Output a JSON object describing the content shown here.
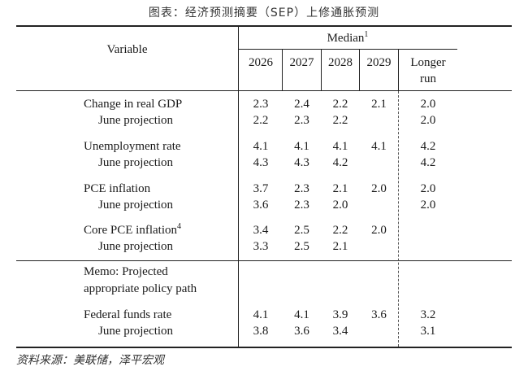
{
  "title": "图表：经济预测摘要（SEP）上修通胀预测",
  "header": {
    "variable": "Variable",
    "median": "Median",
    "median_sup": "1",
    "years": [
      "2026",
      "2027",
      "2028",
      "2029"
    ],
    "longer_1": "Longer",
    "longer_2": "run"
  },
  "rows": [
    {
      "label": "Change in real GDP",
      "sup": "",
      "v": [
        "2.3",
        "2.4",
        "2.2",
        "2.1"
      ],
      "lr": "2.0"
    },
    {
      "label": "June projection",
      "sup": "",
      "v": [
        "2.2",
        "2.3",
        "2.2",
        ""
      ],
      "lr": "2.0"
    },
    {
      "label": "Unemployment rate",
      "sup": "",
      "v": [
        "4.1",
        "4.1",
        "4.1",
        "4.1"
      ],
      "lr": "4.2"
    },
    {
      "label": "June projection",
      "sup": "",
      "v": [
        "4.3",
        "4.3",
        "4.2",
        ""
      ],
      "lr": "4.2"
    },
    {
      "label": "PCE inflation",
      "sup": "",
      "v": [
        "3.7",
        "2.3",
        "2.1",
        "2.0"
      ],
      "lr": "2.0"
    },
    {
      "label": "June projection",
      "sup": "",
      "v": [
        "3.6",
        "2.3",
        "2.0",
        ""
      ],
      "lr": "2.0"
    },
    {
      "label": "Core PCE inflation",
      "sup": "4",
      "v": [
        "3.4",
        "2.5",
        "2.2",
        "2.0"
      ],
      "lr": ""
    },
    {
      "label": "June projection",
      "sup": "",
      "v": [
        "3.3",
        "2.5",
        "2.1",
        ""
      ],
      "lr": ""
    },
    {
      "label": "Memo: Projected",
      "sup": "",
      "v": [
        "",
        "",
        "",
        ""
      ],
      "lr": ""
    },
    {
      "label": "appropriate policy path",
      "sup": "",
      "v": [
        "",
        "",
        "",
        ""
      ],
      "lr": ""
    },
    {
      "label": "Federal funds rate",
      "sup": "",
      "v": [
        "4.1",
        "4.1",
        "3.9",
        "3.6"
      ],
      "lr": "3.2"
    },
    {
      "label": "June projection",
      "sup": "",
      "v": [
        "3.8",
        "3.6",
        "3.4",
        ""
      ],
      "lr": "3.1"
    }
  ],
  "source": "资料来源：美联储，泽平宏观"
}
